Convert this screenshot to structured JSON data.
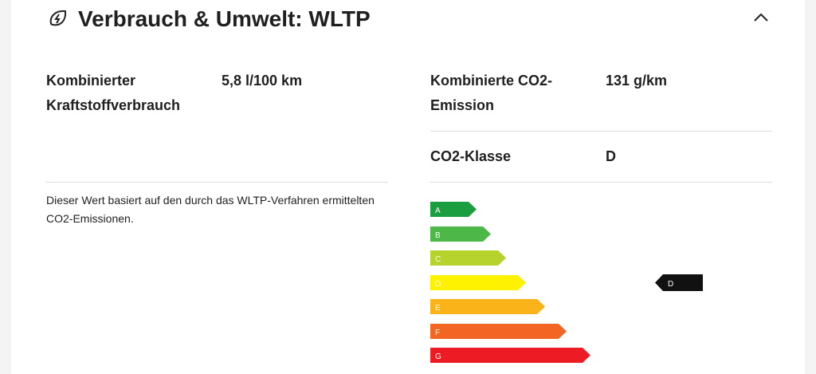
{
  "header": {
    "title": "Verbrauch & Umwelt: WLTP"
  },
  "left": {
    "rows": [
      {
        "label": "Kombinierter Kraftstoffverbrauch",
        "value": "5,8 l/100 km"
      }
    ],
    "note": "Dieser Wert basiert auf den durch das WLTP-Verfahren ermittelten CO2-Emissionen."
  },
  "right": {
    "rows": [
      {
        "label": "Kombinierte CO2-Emission",
        "value": "131 g/km"
      },
      {
        "label": "CO2-Klasse",
        "value": "D"
      }
    ]
  },
  "energy_label": {
    "classes": [
      "A",
      "B",
      "C",
      "D",
      "E",
      "F",
      "G"
    ],
    "current": "D"
  }
}
